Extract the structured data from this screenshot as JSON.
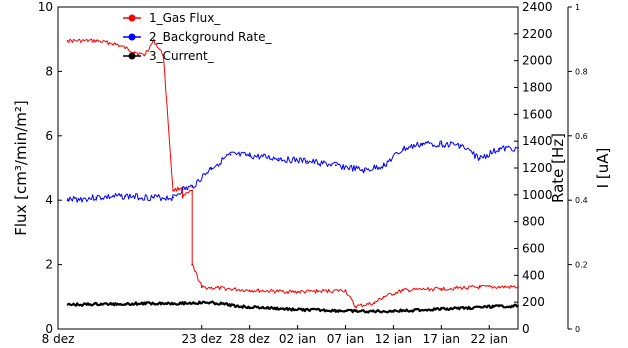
{
  "chart_data": {
    "type": "line",
    "title": "",
    "legend": {
      "placement": "top-left",
      "entries": [
        {
          "label": "1_Gas Flux_",
          "color": "#ff0000"
        },
        {
          "label": "2_Background Rate_",
          "color": "#0000ff"
        },
        {
          "label": "3_Current_",
          "color": "#000000"
        }
      ]
    },
    "x_axis": {
      "label": "",
      "type": "date",
      "range": [
        "2014-12-08",
        "2015-01-25"
      ],
      "tick_labels": [
        "8 dez",
        "23 dez",
        "28 dez",
        "02 jan",
        "07 jan",
        "12 jan",
        "17 jan",
        "22 jan"
      ],
      "tick_dates": [
        "2014-12-08",
        "2014-12-23",
        "2014-12-28",
        "2015-01-02",
        "2015-01-07",
        "2015-01-12",
        "2015-01-17",
        "2015-01-22"
      ]
    },
    "y_axes": [
      {
        "id": "flux",
        "side": "left",
        "label": "Flux [cm³/min/m²]",
        "range": [
          0,
          10
        ],
        "tick_labels": [
          "0",
          "2",
          "4",
          "6",
          "8",
          "10"
        ]
      },
      {
        "id": "rate",
        "side": "right",
        "label": "Rate [Hz]",
        "range": [
          0,
          2400
        ],
        "tick_labels": [
          "0",
          "200",
          "400",
          "600",
          "800",
          "1000",
          "1200",
          "1400",
          "1600",
          "1800",
          "2000",
          "2200",
          "2400"
        ]
      },
      {
        "id": "current",
        "side": "right-outer",
        "label": "I [uA]",
        "range": [
          0,
          1
        ],
        "tick_labels": [
          "0",
          "0.2",
          "0.4",
          "0.6",
          "0.8",
          "1"
        ]
      }
    ],
    "series": [
      {
        "name": "1_Gas Flux_",
        "axis": "flux",
        "color": "#ff0000",
        "x": [
          "2014-12-09",
          "2014-12-12",
          "2014-12-14",
          "2014-12-16",
          "2014-12-17",
          "2014-12-18",
          "2014-12-19",
          "2014-12-20",
          "2014-12-21",
          "2014-12-21",
          "2014-12-22",
          "2014-12-22",
          "2014-12-23",
          "2014-12-23",
          "2014-12-28",
          "2015-01-02",
          "2015-01-07",
          "2015-01-08",
          "2015-01-10",
          "2015-01-11",
          "2015-01-13",
          "2015-01-17",
          "2015-01-21",
          "2015-01-25"
        ],
        "y": [
          8.95,
          8.95,
          8.85,
          8.6,
          8.5,
          8.95,
          8.5,
          4.3,
          4.4,
          4.1,
          4.3,
          2.0,
          1.3,
          1.3,
          1.2,
          1.15,
          1.2,
          0.7,
          0.8,
          1.0,
          1.2,
          1.25,
          1.3,
          1.3
        ]
      },
      {
        "name": "2_Background Rate_",
        "axis": "rate",
        "color": "#0000ff",
        "x": [
          "2014-12-09",
          "2014-12-12",
          "2014-12-15",
          "2014-12-18",
          "2014-12-20",
          "2014-12-21",
          "2014-12-22",
          "2014-12-24",
          "2014-12-26",
          "2014-12-28",
          "2014-12-31",
          "2015-01-03",
          "2015-01-06",
          "2015-01-09",
          "2015-01-11",
          "2015-01-13",
          "2015-01-15",
          "2015-01-17",
          "2015-01-19",
          "2015-01-21",
          "2015-01-23",
          "2015-01-25"
        ],
        "y": [
          960,
          980,
          990,
          980,
          980,
          1040,
          1060,
          1200,
          1300,
          1290,
          1270,
          1250,
          1220,
          1180,
          1220,
          1340,
          1380,
          1380,
          1370,
          1270,
          1340,
          1350
        ]
      },
      {
        "name": "3_Current_",
        "axis": "current",
        "color": "#000000",
        "x": [
          "2014-12-09",
          "2014-12-12",
          "2014-12-15",
          "2014-12-18",
          "2014-12-21",
          "2014-12-24",
          "2014-12-27",
          "2014-12-30",
          "2015-01-02",
          "2015-01-05",
          "2015-01-08",
          "2015-01-11",
          "2015-01-14",
          "2015-01-17",
          "2015-01-20",
          "2015-01-23",
          "2015-01-25"
        ],
        "y": [
          0.075,
          0.077,
          0.078,
          0.08,
          0.08,
          0.082,
          0.07,
          0.065,
          0.06,
          0.058,
          0.055,
          0.055,
          0.058,
          0.062,
          0.066,
          0.07,
          0.072
        ]
      }
    ],
    "grid": false
  }
}
